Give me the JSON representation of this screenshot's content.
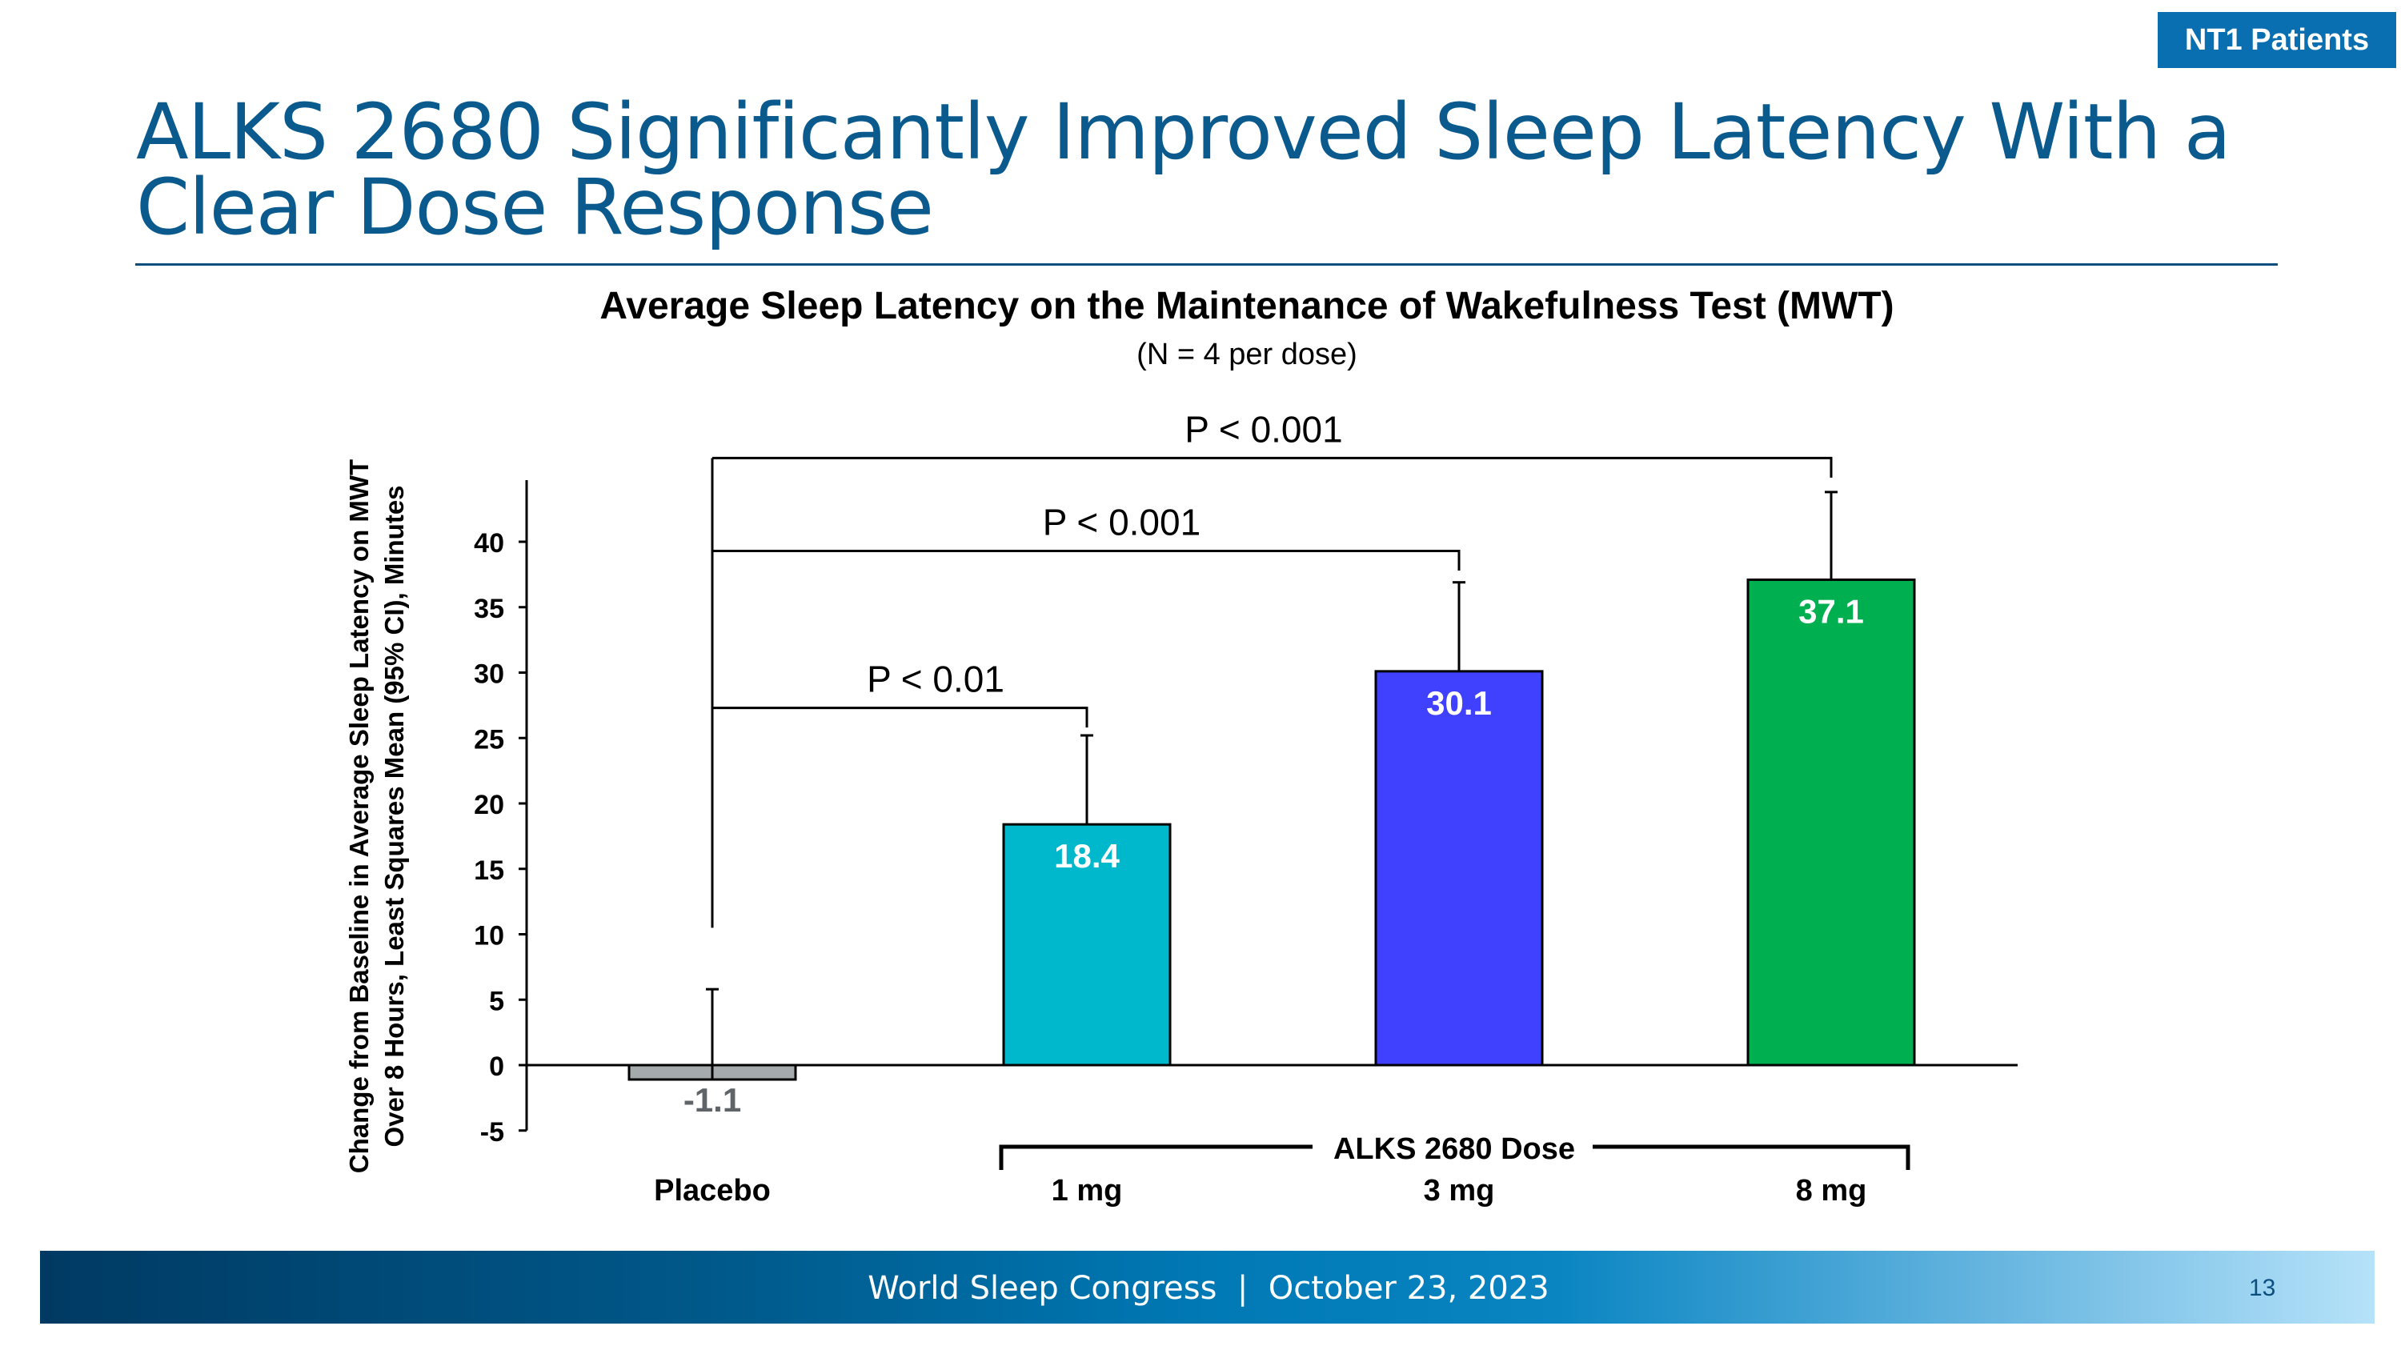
{
  "badge": "NT1 Patients",
  "slide_title": "ALKS 2680 Significantly Improved Sleep Latency With a Clear Dose Response",
  "footer": {
    "text": "World Sleep Congress  |  October 23, 2023",
    "page": "13"
  },
  "chart_data": {
    "type": "bar",
    "title": "Average Sleep Latency on the Maintenance of Wakefulness Test (MWT)",
    "subtitle": "(N = 4 per dose)",
    "ylabel_lines": [
      "Change from Baseline in Average Sleep Latency on MWT",
      "Over 8 Hours, Least Squares Mean (95% CI), Minutes"
    ],
    "categories": [
      "Placebo",
      "1 mg",
      "3 mg",
      "8 mg"
    ],
    "values": [
      -1.1,
      18.4,
      30.1,
      37.1
    ],
    "value_labels": [
      "-1.1",
      "18.4",
      "30.1",
      "37.1"
    ],
    "error_upper": [
      5.8,
      25.2,
      36.9,
      43.8
    ],
    "colors": [
      "#a5aaad",
      "#00b8cc",
      "#4040ff",
      "#00b050"
    ],
    "label_colors": [
      "#5f6468",
      "#ffffff",
      "#ffffff",
      "#ffffff"
    ],
    "ylim": [
      -5,
      45
    ],
    "yticks": [
      -5,
      0,
      5,
      10,
      15,
      20,
      25,
      30,
      35,
      40
    ],
    "group_label": "ALKS 2680 Dose",
    "comparisons": [
      {
        "from": 0,
        "to": 1,
        "label": "P < 0.01",
        "level": 27.3
      },
      {
        "from": 0,
        "to": 2,
        "label": "P < 0.001",
        "level": 39.3
      },
      {
        "from": 0,
        "to": 3,
        "label": "P < 0.001",
        "level": 46.4
      }
    ],
    "grid": false,
    "legend": "none"
  }
}
